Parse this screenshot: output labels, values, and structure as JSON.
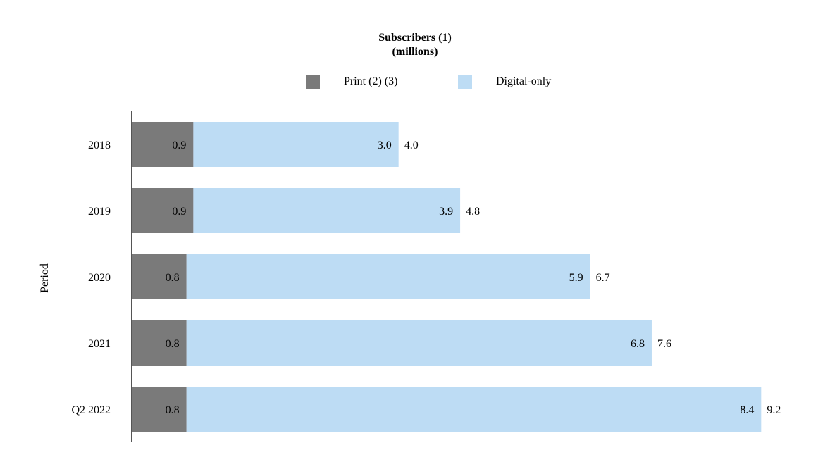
{
  "chart_data": {
    "type": "bar",
    "orientation": "horizontal",
    "stacked": true,
    "title": "Subscribers (1)",
    "subtitle": "(millions)",
    "ylabel": "Period",
    "xlabel": "",
    "categories": [
      "2018",
      "2019",
      "2020",
      "2021",
      "Q2 2022"
    ],
    "series": [
      {
        "name": "Print (2) (3)",
        "color": "#7a7a7a",
        "values": [
          0.9,
          0.9,
          0.8,
          0.8,
          0.8
        ],
        "labels": [
          "0.9",
          "0.9",
          "0.8",
          "0.8",
          "0.8"
        ]
      },
      {
        "name": "Digital-only",
        "color": "#bddcf4",
        "values": [
          3.0,
          3.9,
          5.9,
          6.8,
          8.4
        ],
        "labels": [
          "3.0",
          "3.9",
          "5.9",
          "6.8",
          "8.4"
        ]
      }
    ],
    "totals": [
      "4.0",
      "4.8",
      "6.7",
      "7.6",
      "9.2"
    ],
    "xlim": [
      0,
      9.2
    ],
    "grid": false,
    "legend_position": "top-center"
  }
}
